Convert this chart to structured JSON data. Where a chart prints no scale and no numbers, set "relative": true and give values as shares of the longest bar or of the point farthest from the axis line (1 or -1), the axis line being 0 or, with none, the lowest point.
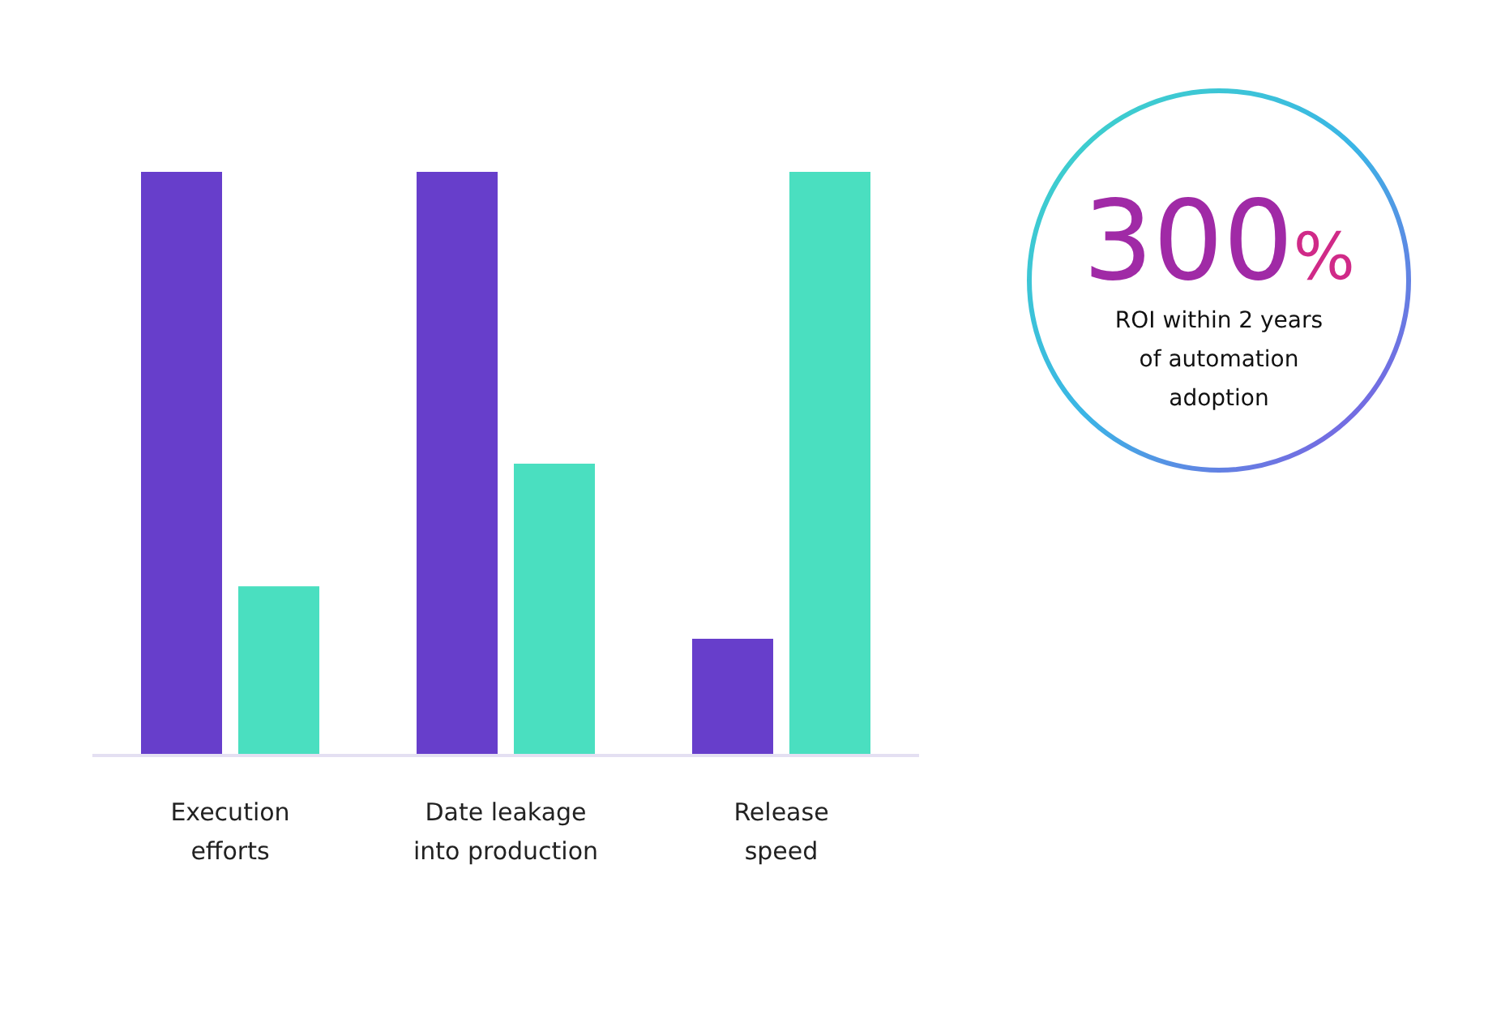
{
  "chart_data": {
    "type": "bar",
    "relative": true,
    "categories": [
      "Execution efforts",
      "Date leakage into production",
      "Release speed"
    ],
    "series": [
      {
        "color": "#673ecb",
        "values": [
          1,
          1,
          0.2
        ]
      },
      {
        "color": "#4adfc0",
        "values": [
          0.29,
          0.5,
          1
        ]
      }
    ],
    "annotations": [
      "300%",
      "ROI within 2 years of automation adoption"
    ]
  }
}
